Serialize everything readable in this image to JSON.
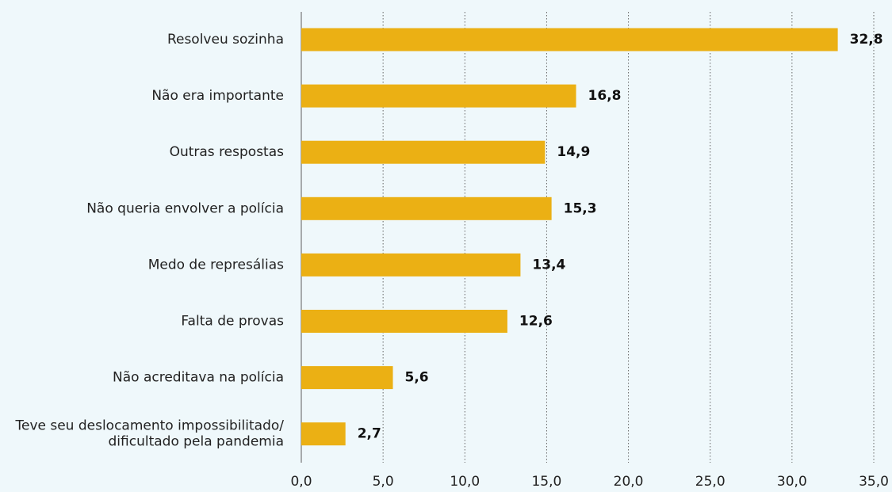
{
  "chart_data": {
    "type": "bar",
    "orientation": "horizontal",
    "categories": [
      "Resolveu sozinha",
      "Não era importante",
      "Outras respostas",
      "Não queria envolver a polícia",
      "Medo de represálias",
      "Falta de provas",
      "Não acreditava na polícia",
      "Teve seu deslocamento impossibilitado/\ndificultado pela pandemia"
    ],
    "values": [
      32.8,
      16.8,
      14.9,
      15.3,
      13.4,
      12.6,
      5.6,
      2.7
    ],
    "value_labels": [
      "32,8",
      "16,8",
      "14,9",
      "15,3",
      "13,4",
      "12,6",
      "5,6",
      "2,7"
    ],
    "color": "#ebb014",
    "xlim": [
      0,
      35
    ],
    "xticks": [
      {
        "value": 0,
        "label": "0,0"
      },
      {
        "value": 5,
        "label": "5,0"
      },
      {
        "value": 10,
        "label": "10,0"
      },
      {
        "value": 15,
        "label": "15,0"
      },
      {
        "value": 20,
        "label": "20,0"
      },
      {
        "value": 25,
        "label": "25,0"
      },
      {
        "value": 30,
        "label": "30,0"
      },
      {
        "value": 35,
        "label": "35,0"
      }
    ],
    "grid": true
  }
}
